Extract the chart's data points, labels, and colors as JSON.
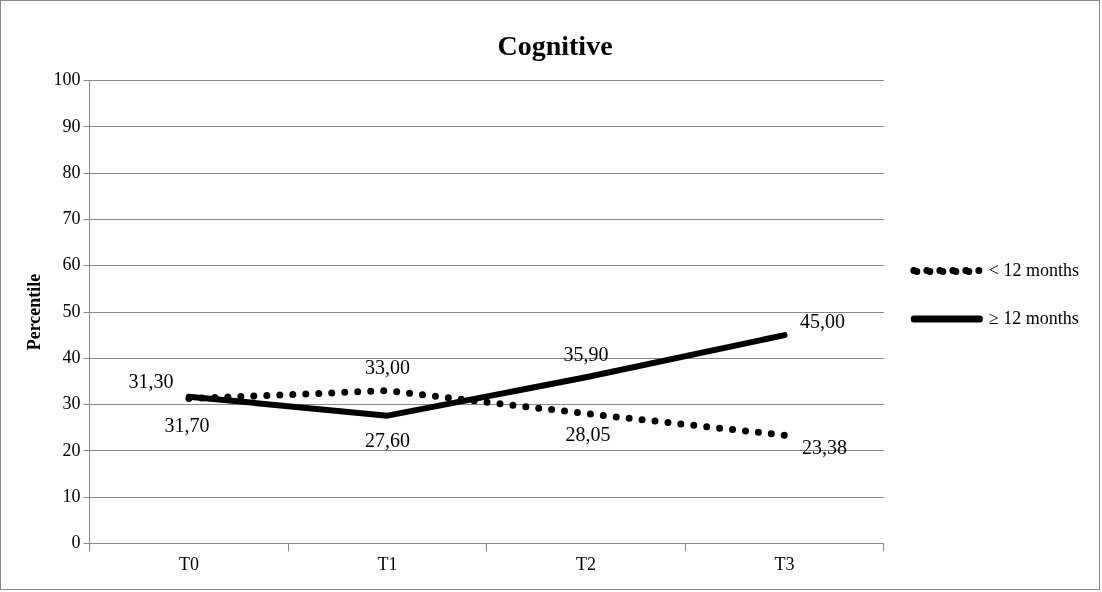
{
  "chart_data": {
    "type": "line",
    "title": "Cognitive",
    "ylabel": "Percentile",
    "categories": [
      "T0",
      "T1",
      "T2",
      "T3"
    ],
    "series": [
      {
        "name": "< 12 months",
        "color": "#000000",
        "line_style": "dotted",
        "values": [
          31.3,
          33.0,
          28.05,
          23.38
        ],
        "value_labels": [
          "31,30",
          "33,00",
          "28,05",
          "23,38"
        ]
      },
      {
        "name": "≥ 12 months",
        "color": "#000000",
        "line_style": "solid",
        "values": [
          31.7,
          27.6,
          35.9,
          45.0
        ],
        "value_labels": [
          "31,70",
          "27,60",
          "35,90",
          "45,00"
        ]
      }
    ],
    "ylim": [
      0,
      100
    ],
    "yticks": [
      0,
      10,
      20,
      30,
      40,
      50,
      60,
      70,
      80,
      90,
      100
    ],
    "grid": "y",
    "legend": "right",
    "marker": "none"
  }
}
